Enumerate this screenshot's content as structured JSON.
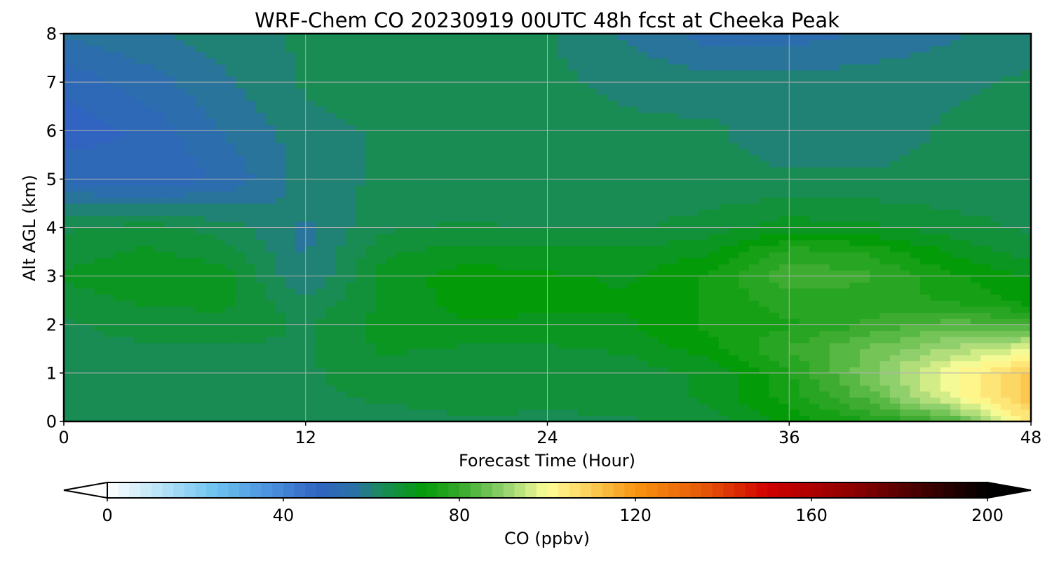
{
  "chart_data": {
    "type": "heatmap",
    "title": "WRF-Chem CO  20230919 00UTC 48h fcst at Cheeka Peak",
    "xlabel": "Forecast Time (Hour)",
    "ylabel": "Alt AGL (km)",
    "xlim": [
      0,
      48
    ],
    "ylim": [
      0,
      8
    ],
    "xticks": [
      0,
      12,
      24,
      36,
      48
    ],
    "yticks": [
      0,
      1,
      2,
      3,
      4,
      5,
      6,
      7,
      8
    ],
    "grid": true,
    "x": [
      0,
      4,
      8,
      12,
      16,
      20,
      24,
      28,
      32,
      36,
      40,
      44,
      48
    ],
    "y": [
      0,
      0.5,
      1,
      1.5,
      2,
      2.5,
      3,
      3.5,
      4,
      5,
      6,
      7,
      8
    ],
    "z": [
      [
        62,
        62,
        64,
        63,
        63,
        64,
        64,
        64,
        66,
        72,
        76,
        82,
        105
      ],
      [
        62,
        63,
        64,
        64,
        65,
        66,
        65,
        66,
        68,
        75,
        84,
        98,
        112
      ],
      [
        63,
        64,
        64,
        64,
        66,
        66,
        66,
        66,
        68,
        76,
        88,
        100,
        110
      ],
      [
        63,
        64,
        64,
        64,
        68,
        67,
        67,
        68,
        72,
        80,
        86,
        92,
        98
      ],
      [
        64,
        66,
        67,
        64,
        69,
        70,
        70,
        70,
        74,
        76,
        80,
        84,
        82
      ],
      [
        66,
        68,
        68,
        62,
        68,
        72,
        71,
        71,
        74,
        78,
        78,
        76,
        72
      ],
      [
        68,
        70,
        69,
        58,
        69,
        72,
        71,
        70,
        74,
        82,
        80,
        74,
        70
      ],
      [
        66,
        68,
        66,
        58,
        67,
        69,
        68,
        68,
        70,
        78,
        76,
        70,
        66
      ],
      [
        64,
        66,
        63,
        58,
        64,
        65,
        64,
        64,
        66,
        69,
        68,
        66,
        64
      ],
      [
        52,
        50,
        53,
        60,
        62,
        62,
        62,
        62,
        62,
        62,
        62,
        62,
        62
      ],
      [
        48,
        50,
        56,
        60,
        62,
        62,
        62,
        62,
        62,
        60,
        60,
        62,
        62
      ],
      [
        50,
        54,
        58,
        62,
        64,
        64,
        62,
        61,
        60,
        60,
        60,
        61,
        62
      ],
      [
        56,
        58,
        60,
        62,
        64,
        63,
        62,
        58,
        54,
        54,
        56,
        58,
        60
      ]
    ],
    "colorbar": {
      "label": "CO  (ppbv)",
      "min": 0,
      "max": 200,
      "ticks": [
        0,
        40,
        80,
        120,
        160,
        200
      ],
      "extend": "both",
      "levels": [
        {
          "v": 0,
          "color": "#ffffff"
        },
        {
          "v": 12,
          "color": "#b9e3f7"
        },
        {
          "v": 24,
          "color": "#6fc5f0"
        },
        {
          "v": 36,
          "color": "#4d95e0"
        },
        {
          "v": 48,
          "color": "#3064c0"
        },
        {
          "v": 56,
          "color": "#2a70a8"
        },
        {
          "v": 62,
          "color": "#1b8a5c"
        },
        {
          "v": 72,
          "color": "#049b08"
        },
        {
          "v": 80,
          "color": "#34a82a"
        },
        {
          "v": 90,
          "color": "#8fd06c"
        },
        {
          "v": 100,
          "color": "#ffff99"
        },
        {
          "v": 110,
          "color": "#fbcd55"
        },
        {
          "v": 120,
          "color": "#f89410"
        },
        {
          "v": 135,
          "color": "#e65a08"
        },
        {
          "v": 150,
          "color": "#d00000"
        },
        {
          "v": 170,
          "color": "#8b0000"
        },
        {
          "v": 185,
          "color": "#420000"
        },
        {
          "v": 200,
          "color": "#000000"
        }
      ]
    }
  }
}
